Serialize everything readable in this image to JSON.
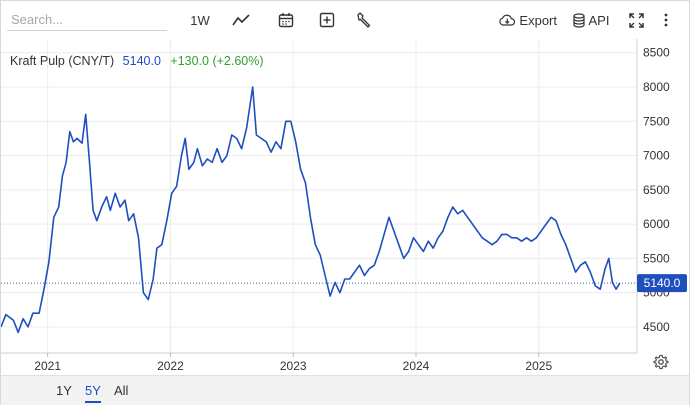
{
  "toolbar": {
    "search_placeholder": "Search...",
    "interval_label": "1W",
    "export_label": "Export",
    "api_label": "API",
    "icons": [
      "line-chart-icon",
      "calendar-icon",
      "add-icon",
      "wrench-icon",
      "cloud-download-icon",
      "database-icon",
      "fullscreen-icon",
      "more-vertical-icon"
    ]
  },
  "legend": {
    "name": "Kraft Pulp (CNY/T)",
    "price": "5140.0",
    "change": "+130.0 (+2.60%)",
    "price_color": "#1f4fbf",
    "change_color": "#2fa12f"
  },
  "last_price_tag": "5140.0",
  "range_buttons": [
    "1Y",
    "5Y",
    "All"
  ],
  "active_range": "5Y",
  "chart_data": {
    "type": "line",
    "series": [
      {
        "name": "Kraft Pulp (CNY/T)",
        "color": "#1f4fbf",
        "points": [
          [
            2020.62,
            4500
          ],
          [
            2020.66,
            4680
          ],
          [
            2020.72,
            4600
          ],
          [
            2020.76,
            4420
          ],
          [
            2020.8,
            4620
          ],
          [
            2020.84,
            4500
          ],
          [
            2020.88,
            4700
          ],
          [
            2020.93,
            4700
          ],
          [
            2020.97,
            5050
          ],
          [
            2021.01,
            5450
          ],
          [
            2021.05,
            6100
          ],
          [
            2021.09,
            6250
          ],
          [
            2021.12,
            6700
          ],
          [
            2021.15,
            6900
          ],
          [
            2021.18,
            7350
          ],
          [
            2021.21,
            7200
          ],
          [
            2021.24,
            7250
          ],
          [
            2021.28,
            7180
          ],
          [
            2021.31,
            7600
          ],
          [
            2021.34,
            6920
          ],
          [
            2021.37,
            6200
          ],
          [
            2021.4,
            6050
          ],
          [
            2021.44,
            6250
          ],
          [
            2021.48,
            6400
          ],
          [
            2021.51,
            6200
          ],
          [
            2021.55,
            6450
          ],
          [
            2021.59,
            6250
          ],
          [
            2021.63,
            6350
          ],
          [
            2021.66,
            6050
          ],
          [
            2021.7,
            6150
          ],
          [
            2021.74,
            5800
          ],
          [
            2021.78,
            5000
          ],
          [
            2021.82,
            4900
          ],
          [
            2021.86,
            5200
          ],
          [
            2021.89,
            5650
          ],
          [
            2021.93,
            5700
          ],
          [
            2021.97,
            6050
          ],
          [
            2022.01,
            6450
          ],
          [
            2022.05,
            6550
          ],
          [
            2022.09,
            7000
          ],
          [
            2022.12,
            7250
          ],
          [
            2022.15,
            6800
          ],
          [
            2022.19,
            6900
          ],
          [
            2022.22,
            7100
          ],
          [
            2022.26,
            6850
          ],
          [
            2022.3,
            6950
          ],
          [
            2022.34,
            6900
          ],
          [
            2022.38,
            7100
          ],
          [
            2022.42,
            6900
          ],
          [
            2022.46,
            7000
          ],
          [
            2022.5,
            7300
          ],
          [
            2022.54,
            7250
          ],
          [
            2022.58,
            7100
          ],
          [
            2022.62,
            7400
          ],
          [
            2022.67,
            8000
          ],
          [
            2022.7,
            7300
          ],
          [
            2022.74,
            7250
          ],
          [
            2022.78,
            7200
          ],
          [
            2022.82,
            7050
          ],
          [
            2022.86,
            7200
          ],
          [
            2022.9,
            7100
          ],
          [
            2022.94,
            7500
          ],
          [
            2022.98,
            7500
          ],
          [
            2023.02,
            7200
          ],
          [
            2023.06,
            6800
          ],
          [
            2023.1,
            6600
          ],
          [
            2023.14,
            6100
          ],
          [
            2023.18,
            5700
          ],
          [
            2023.22,
            5550
          ],
          [
            2023.26,
            5250
          ],
          [
            2023.3,
            4950
          ],
          [
            2023.34,
            5150
          ],
          [
            2023.38,
            5000
          ],
          [
            2023.42,
            5200
          ],
          [
            2023.46,
            5200
          ],
          [
            2023.5,
            5300
          ],
          [
            2023.54,
            5400
          ],
          [
            2023.58,
            5250
          ],
          [
            2023.62,
            5350
          ],
          [
            2023.66,
            5400
          ],
          [
            2023.7,
            5600
          ],
          [
            2023.74,
            5850
          ],
          [
            2023.78,
            6100
          ],
          [
            2023.82,
            5900
          ],
          [
            2023.86,
            5700
          ],
          [
            2023.9,
            5500
          ],
          [
            2023.94,
            5600
          ],
          [
            2023.98,
            5800
          ],
          [
            2024.02,
            5700
          ],
          [
            2024.06,
            5600
          ],
          [
            2024.1,
            5750
          ],
          [
            2024.14,
            5650
          ],
          [
            2024.18,
            5800
          ],
          [
            2024.22,
            5900
          ],
          [
            2024.26,
            6100
          ],
          [
            2024.3,
            6250
          ],
          [
            2024.34,
            6150
          ],
          [
            2024.38,
            6200
          ],
          [
            2024.42,
            6100
          ],
          [
            2024.46,
            6000
          ],
          [
            2024.5,
            5900
          ],
          [
            2024.54,
            5800
          ],
          [
            2024.58,
            5750
          ],
          [
            2024.62,
            5700
          ],
          [
            2024.66,
            5750
          ],
          [
            2024.7,
            5850
          ],
          [
            2024.74,
            5850
          ],
          [
            2024.78,
            5800
          ],
          [
            2024.82,
            5800
          ],
          [
            2024.86,
            5750
          ],
          [
            2024.9,
            5800
          ],
          [
            2024.94,
            5750
          ],
          [
            2024.98,
            5800
          ],
          [
            2025.02,
            5900
          ],
          [
            2025.06,
            6000
          ],
          [
            2025.1,
            6100
          ],
          [
            2025.14,
            6050
          ],
          [
            2025.18,
            5850
          ],
          [
            2025.22,
            5700
          ],
          [
            2025.26,
            5500
          ],
          [
            2025.3,
            5300
          ],
          [
            2025.34,
            5400
          ],
          [
            2025.38,
            5450
          ],
          [
            2025.42,
            5300
          ],
          [
            2025.46,
            5100
          ],
          [
            2025.5,
            5050
          ],
          [
            2025.54,
            5350
          ],
          [
            2025.57,
            5500
          ],
          [
            2025.6,
            5150
          ],
          [
            2025.63,
            5050
          ],
          [
            2025.66,
            5140
          ]
        ]
      }
    ],
    "x_ticks": [
      {
        "value": 2021.0,
        "label": "2021"
      },
      {
        "value": 2022.0,
        "label": "2022"
      },
      {
        "value": 2023.0,
        "label": "2023"
      },
      {
        "value": 2024.0,
        "label": "2024"
      },
      {
        "value": 2025.0,
        "label": "2025"
      }
    ],
    "y_ticks": [
      4500,
      5000,
      5500,
      6000,
      6500,
      7000,
      7500,
      8000,
      8500
    ],
    "xlim": [
      2020.62,
      2025.8
    ],
    "ylim": [
      4120,
      8700
    ],
    "last_value": 5140,
    "grid": true,
    "y_axis_position": "right"
  }
}
